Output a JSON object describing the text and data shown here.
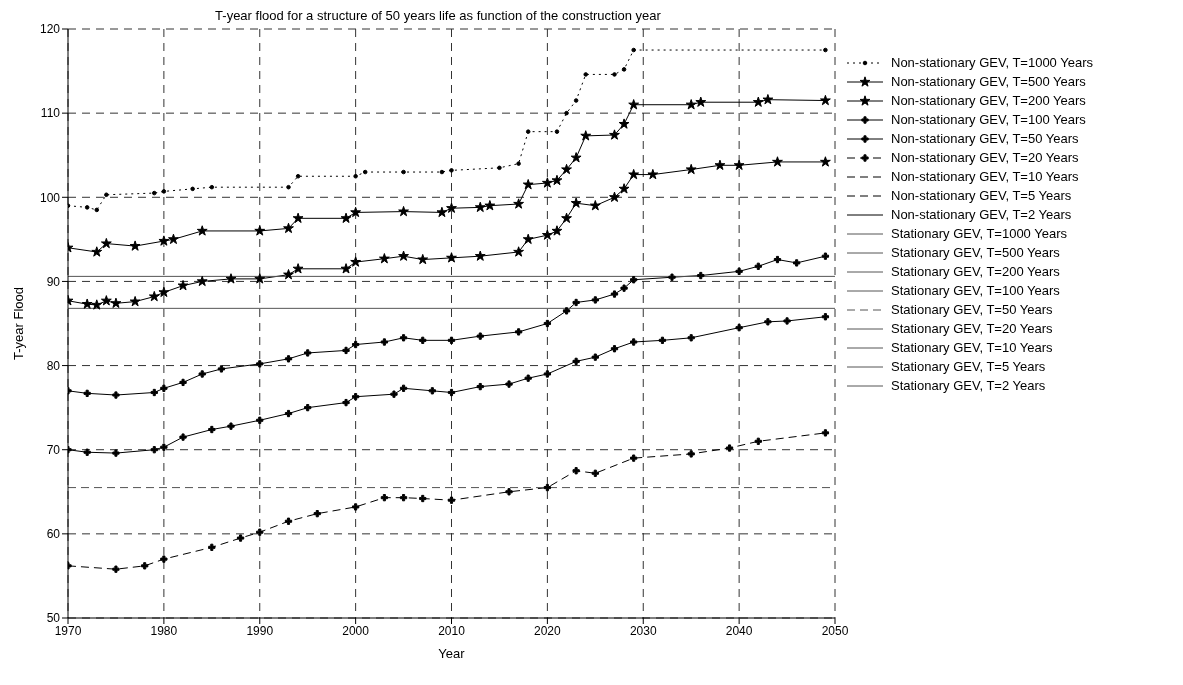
{
  "chart_data": {
    "type": "line",
    "title": "T-year flood for a structure of 50 years life as function of the construction year",
    "xlabel": "Year",
    "ylabel": "T-year Flood",
    "xlim": [
      1970,
      2050
    ],
    "ylim": [
      50,
      120
    ],
    "xticks": [
      1970,
      1980,
      1990,
      2000,
      2010,
      2020,
      2030,
      2040,
      2050
    ],
    "yticks": [
      50,
      60,
      70,
      80,
      90,
      100,
      110,
      120
    ],
    "grid": true,
    "legend": "right",
    "series": [
      {
        "name": "Non-stationary GEV, T=1000 Years",
        "color": "#000000",
        "marker": "circle",
        "line_style": "dotted",
        "x": [
          1970,
          1972,
          1973,
          1974,
          1979,
          1980,
          1983,
          1985,
          1993,
          1994,
          2000,
          2001,
          2005,
          2009,
          2010,
          2015,
          2017,
          2018,
          2021,
          2022,
          2023,
          2024,
          2027,
          2028,
          2029,
          2049
        ],
        "values": [
          99,
          98.8,
          98.5,
          100.3,
          100.5,
          100.7,
          101,
          101.2,
          101.2,
          102.5,
          102.5,
          103,
          103,
          103,
          103.2,
          103.5,
          104,
          107.8,
          107.8,
          110,
          111.5,
          114.6,
          114.6,
          115.2,
          117.5,
          117.5
        ]
      },
      {
        "name": "Non-stationary GEV, T=500 Years",
        "color": "#000000",
        "marker": "star",
        "line_style": "solid",
        "x": [
          1970,
          1973,
          1974,
          1977,
          1980,
          1981,
          1984,
          1990,
          1993,
          1994,
          1999,
          2000,
          2005,
          2009,
          2010,
          2013,
          2014,
          2017,
          2018,
          2020,
          2021,
          2022,
          2023,
          2024,
          2027,
          2028,
          2029,
          2035,
          2036,
          2042,
          2043,
          2049
        ],
        "values": [
          94,
          93.5,
          94.5,
          94.2,
          94.8,
          95,
          96,
          96,
          96.3,
          97.5,
          97.5,
          98.2,
          98.3,
          98.2,
          98.7,
          98.8,
          99,
          99.2,
          101.5,
          101.7,
          102,
          103.3,
          104.7,
          107.3,
          107.4,
          108.7,
          111,
          111,
          111.3,
          111.3,
          111.6,
          111.5
        ]
      },
      {
        "name": "Non-stationary GEV, T=200 Years",
        "color": "#000000",
        "marker": "star",
        "line_style": "solid",
        "x": [
          1970,
          1972,
          1973,
          1974,
          1975,
          1977,
          1979,
          1980,
          1982,
          1984,
          1987,
          1990,
          1993,
          1994,
          1999,
          2000,
          2003,
          2005,
          2007,
          2010,
          2013,
          2017,
          2018,
          2020,
          2021,
          2022,
          2023,
          2025,
          2027,
          2028,
          2029,
          2031,
          2035,
          2038,
          2040,
          2044,
          2049
        ],
        "values": [
          87.7,
          87.3,
          87.2,
          87.7,
          87.4,
          87.6,
          88.2,
          88.7,
          89.5,
          90,
          90.3,
          90.3,
          90.8,
          91.5,
          91.5,
          92.3,
          92.7,
          93,
          92.6,
          92.8,
          93,
          93.5,
          95,
          95.5,
          96,
          97.5,
          99.3,
          99,
          100,
          101,
          102.7,
          102.7,
          103.3,
          103.8,
          103.8,
          104.2,
          104.2
        ]
      },
      {
        "name": "Non-stationary GEV, T=100 Years",
        "color": "#000000",
        "marker": "cross",
        "line_style": "solid",
        "x": [
          1970,
          1972,
          1975,
          1979,
          1980,
          1982,
          1984,
          1986,
          1990,
          1993,
          1995,
          1999,
          2000,
          2003,
          2005,
          2007,
          2010,
          2013,
          2017,
          2020,
          2022,
          2023,
          2025,
          2027,
          2028,
          2029,
          2033,
          2036,
          2040,
          2042,
          2044,
          2046,
          2049
        ],
        "values": [
          77,
          76.7,
          76.5,
          76.8,
          77.3,
          78,
          79,
          79.6,
          80.2,
          80.8,
          81.5,
          81.8,
          82.5,
          82.8,
          83.3,
          83,
          83,
          83.5,
          84,
          85,
          86.5,
          87.5,
          87.8,
          88.5,
          89.2,
          90.2,
          90.5,
          90.7,
          91.2,
          91.8,
          92.6,
          92.2,
          93
        ]
      },
      {
        "name": "Non-stationary GEV, T=50 Years",
        "color": "#000000",
        "marker": "cross",
        "line_style": "solid",
        "x": [
          1970,
          1972,
          1975,
          1979,
          1980,
          1982,
          1985,
          1987,
          1990,
          1993,
          1995,
          1999,
          2000,
          2004,
          2005,
          2008,
          2010,
          2013,
          2016,
          2018,
          2020,
          2023,
          2025,
          2027,
          2029,
          2032,
          2035,
          2040,
          2043,
          2045,
          2049
        ],
        "values": [
          70,
          69.7,
          69.6,
          70,
          70.3,
          71.5,
          72.4,
          72.8,
          73.5,
          74.3,
          75,
          75.6,
          76.3,
          76.6,
          77.3,
          77,
          76.8,
          77.5,
          77.8,
          78.5,
          79,
          80.5,
          81,
          82,
          82.8,
          83,
          83.3,
          84.5,
          85.2,
          85.3,
          85.8
        ]
      },
      {
        "name": "Non-stationary GEV, T=20 Years",
        "color": "#000000",
        "marker": "cross",
        "line_style": "dashed",
        "x": [
          1970,
          1975,
          1978,
          1980,
          1985,
          1988,
          1990,
          1993,
          1996,
          2000,
          2003,
          2005,
          2007,
          2010,
          2016,
          2020,
          2023,
          2025,
          2029,
          2035,
          2039,
          2042,
          2049
        ],
        "values": [
          56.2,
          55.8,
          56.2,
          57,
          58.4,
          59.5,
          60.2,
          61.5,
          62.4,
          63.2,
          64.3,
          64.3,
          64.2,
          64,
          65,
          65.5,
          67.5,
          67.2,
          69,
          69.5,
          70.2,
          71,
          72
        ]
      },
      {
        "name": "Non-stationary GEV, T=10 Years",
        "color": "#000000",
        "line_style": "dashed"
      },
      {
        "name": "Non-stationary GEV, T=5 Years",
        "color": "#000000",
        "line_style": "dashed"
      },
      {
        "name": "Non-stationary GEV, T=2 Years",
        "color": "#000000",
        "line_style": "solid"
      },
      {
        "name": "Stationary GEV, T=1000 Years",
        "color": "#555555",
        "marker": "none",
        "line_style": "solid",
        "x": [
          1970,
          2050
        ],
        "values": [
          90.6,
          90.6
        ]
      },
      {
        "name": "Stationary GEV, T=500 Years",
        "color": "#555555",
        "line_style": "solid"
      },
      {
        "name": "Stationary GEV, T=200 Years",
        "color": "#555555",
        "marker": "none",
        "line_style": "solid",
        "x": [
          1970,
          2050
        ],
        "values": [
          86.8,
          86.8
        ]
      },
      {
        "name": "Stationary GEV, T=100 Years",
        "color": "#555555",
        "line_style": "solid"
      },
      {
        "name": "Stationary GEV, T=50 Years",
        "color": "#555555",
        "marker": "none",
        "line_style": "dashed",
        "x": [
          1970,
          2050
        ],
        "values": [
          65.5,
          65.5
        ]
      },
      {
        "name": "Stationary GEV, T=20 Years",
        "color": "#555555",
        "line_style": "solid"
      },
      {
        "name": "Stationary GEV, T=10 Years",
        "color": "#555555",
        "line_style": "solid"
      },
      {
        "name": "Stationary GEV, T=5 Years",
        "color": "#555555",
        "line_style": "solid"
      },
      {
        "name": "Stationary GEV, T=2 Years",
        "color": "#555555",
        "line_style": "solid"
      }
    ]
  }
}
